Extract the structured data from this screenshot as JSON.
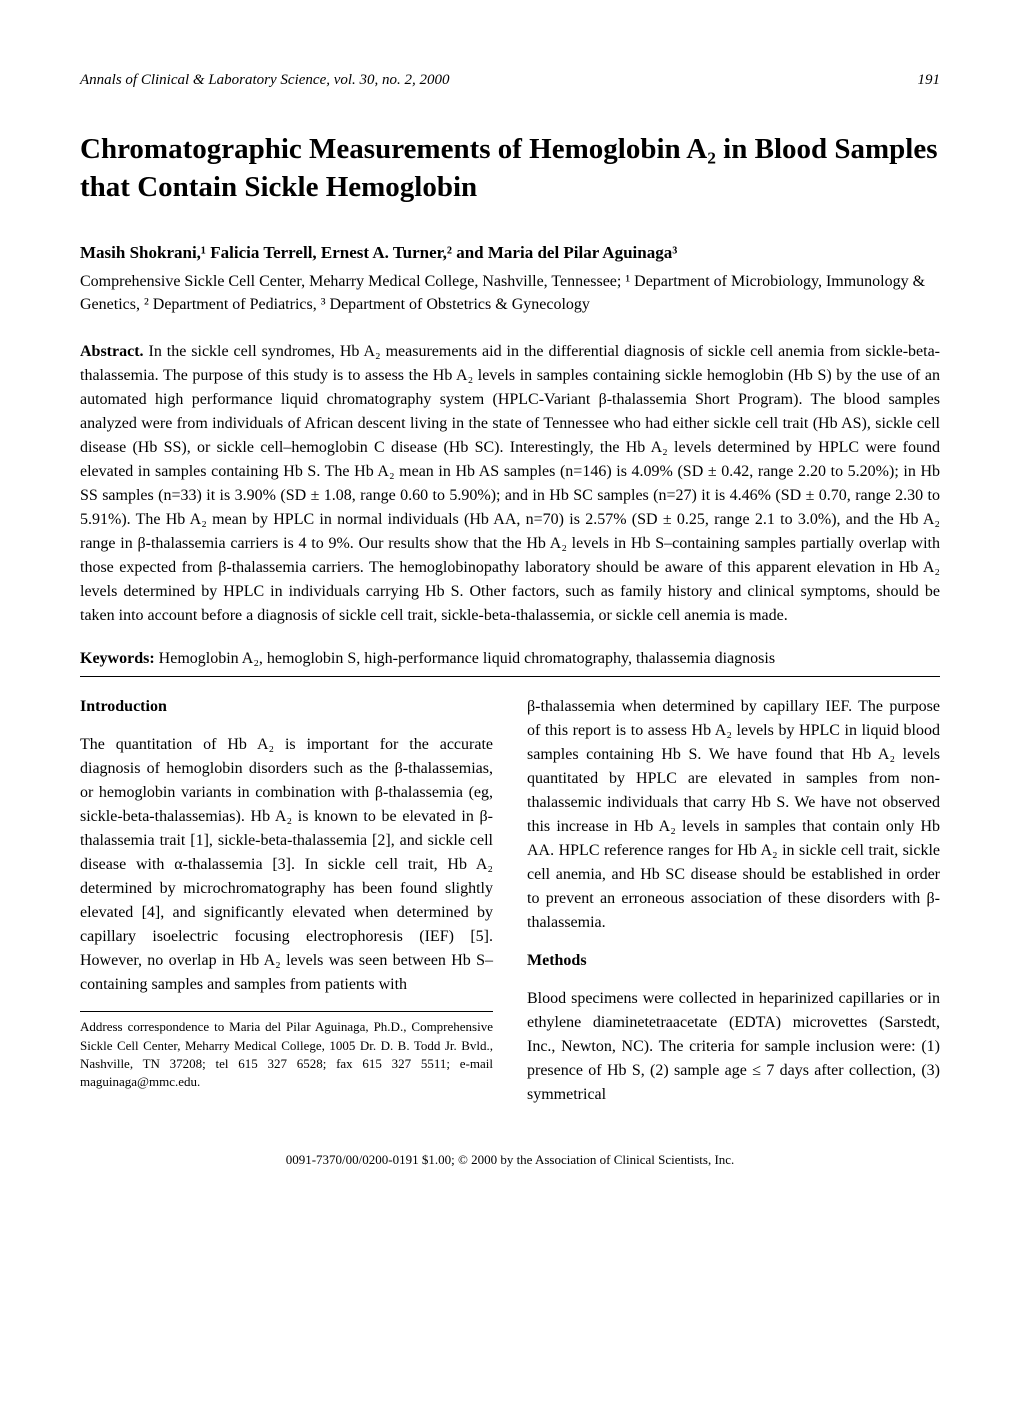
{
  "header": {
    "journal": "Annals of Clinical & Laboratory Science, vol. 30, no. 2, 2000",
    "page_number": "191"
  },
  "title": "Chromatographic Measurements of Hemoglobin A₂ in Blood Samples that Contain Sickle Hemoglobin",
  "authors": "Masih Shokrani,¹ Falicia Terrell, Ernest A. Turner,² and Maria del Pilar Aguinaga³",
  "affiliations": "Comprehensive Sickle Cell Center, Meharry Medical College, Nashville, Tennessee; ¹ Department of Microbiology, Immunology & Genetics, ² Department of Pediatrics, ³ Department of Obstetrics & Gynecology",
  "abstract": {
    "label": "Abstract.",
    "text": "In the sickle cell syndromes, Hb A₂ measurements aid in the differential diagnosis of sickle cell anemia from sickle-beta-thalassemia. The purpose of this study is to assess the Hb A₂ levels in samples containing sickle hemoglobin (Hb S) by the use of an automated high performance liquid chromatography system (HPLC-Variant β-thalassemia Short Program). The blood samples analyzed were from individuals of African descent living in the state of Tennessee who had either sickle cell trait (Hb AS), sickle cell disease (Hb SS), or sickle cell–hemoglobin C disease (Hb SC). Interestingly, the Hb A₂ levels determined by HPLC were found elevated in samples containing Hb S. The Hb A₂ mean in Hb AS samples (n=146) is 4.09% (SD ± 0.42, range 2.20 to 5.20%); in Hb SS samples (n=33) it is 3.90% (SD ± 1.08, range 0.60 to 5.90%); and in Hb SC samples (n=27) it is 4.46% (SD ± 0.70, range 2.30 to 5.91%). The Hb A₂ mean by HPLC in normal individuals (Hb AA, n=70) is 2.57% (SD ± 0.25, range 2.1 to 3.0%), and the Hb A₂ range in β-thalassemia carriers is 4 to 9%. Our results show that the Hb A₂ levels in Hb S–containing samples partially overlap with those expected from β-thalassemia carriers. The hemoglobinopathy laboratory should be aware of this apparent elevation in Hb A₂ levels determined by HPLC in individuals carrying Hb S. Other factors, such as family history and clinical symptoms, should be taken into account before a diagnosis of sickle cell trait, sickle-beta-thalassemia, or sickle cell anemia is made."
  },
  "keywords": {
    "label": "Keywords:",
    "text": "Hemoglobin A₂, hemoglobin S, high-performance liquid chromatography, thalassemia diagnosis"
  },
  "introduction": {
    "heading": "Introduction",
    "text": "The quantitation of Hb A₂ is important for the accurate diagnosis of hemoglobin disorders such as the β-thalassemias, or hemoglobin variants in combination with β-thalassemia (eg, sickle-beta-thalassemias). Hb A₂ is known to be elevated in β-thalassemia trait [1], sickle-beta-thalassemia [2], and sickle cell disease with α-thalassemia [3]. In sickle cell trait, Hb A₂ determined by microchromatography has been found slightly elevated [4], and significantly elevated when determined by capillary isoelectric focusing electrophoresis (IEF) [5]. However, no overlap in Hb A₂ levels was seen between Hb S–containing samples and samples from patients with"
  },
  "col2_continuation": "β-thalassemia when determined by capillary IEF. The purpose of this report is to assess Hb A₂ levels by HPLC in liquid blood samples containing Hb S. We have found that Hb A₂ levels quantitated by HPLC are elevated in samples from non-thalassemic individuals that carry Hb S. We have not observed this increase in Hb A₂ levels in samples that contain only Hb AA. HPLC reference ranges for Hb A₂ in sickle cell trait, sickle cell anemia, and Hb SC disease should be established in order to prevent an erroneous association of these disorders with β-thalassemia.",
  "methods": {
    "heading": "Methods",
    "text": "Blood specimens were collected in heparinized capillaries or in ethylene diaminetetraacetate (EDTA) microvettes (Sarstedt, Inc., Newton, NC). The criteria for sample inclusion were: (1) presence of Hb S, (2) sample age ≤ 7 days after collection, (3) symmetrical"
  },
  "footnote": "Address correspondence to Maria del Pilar Aguinaga, Ph.D., Comprehensive Sickle Cell Center, Meharry Medical College, 1005 Dr. D. B. Todd Jr. Bvld., Nashville, TN 37208; tel 615 327 6528; fax 615 327 5511; e-mail maguinaga@mmc.edu.",
  "footer": "0091-7370/00/0200-0191 $1.00; © 2000 by the Association of Clinical Scientists, Inc."
}
